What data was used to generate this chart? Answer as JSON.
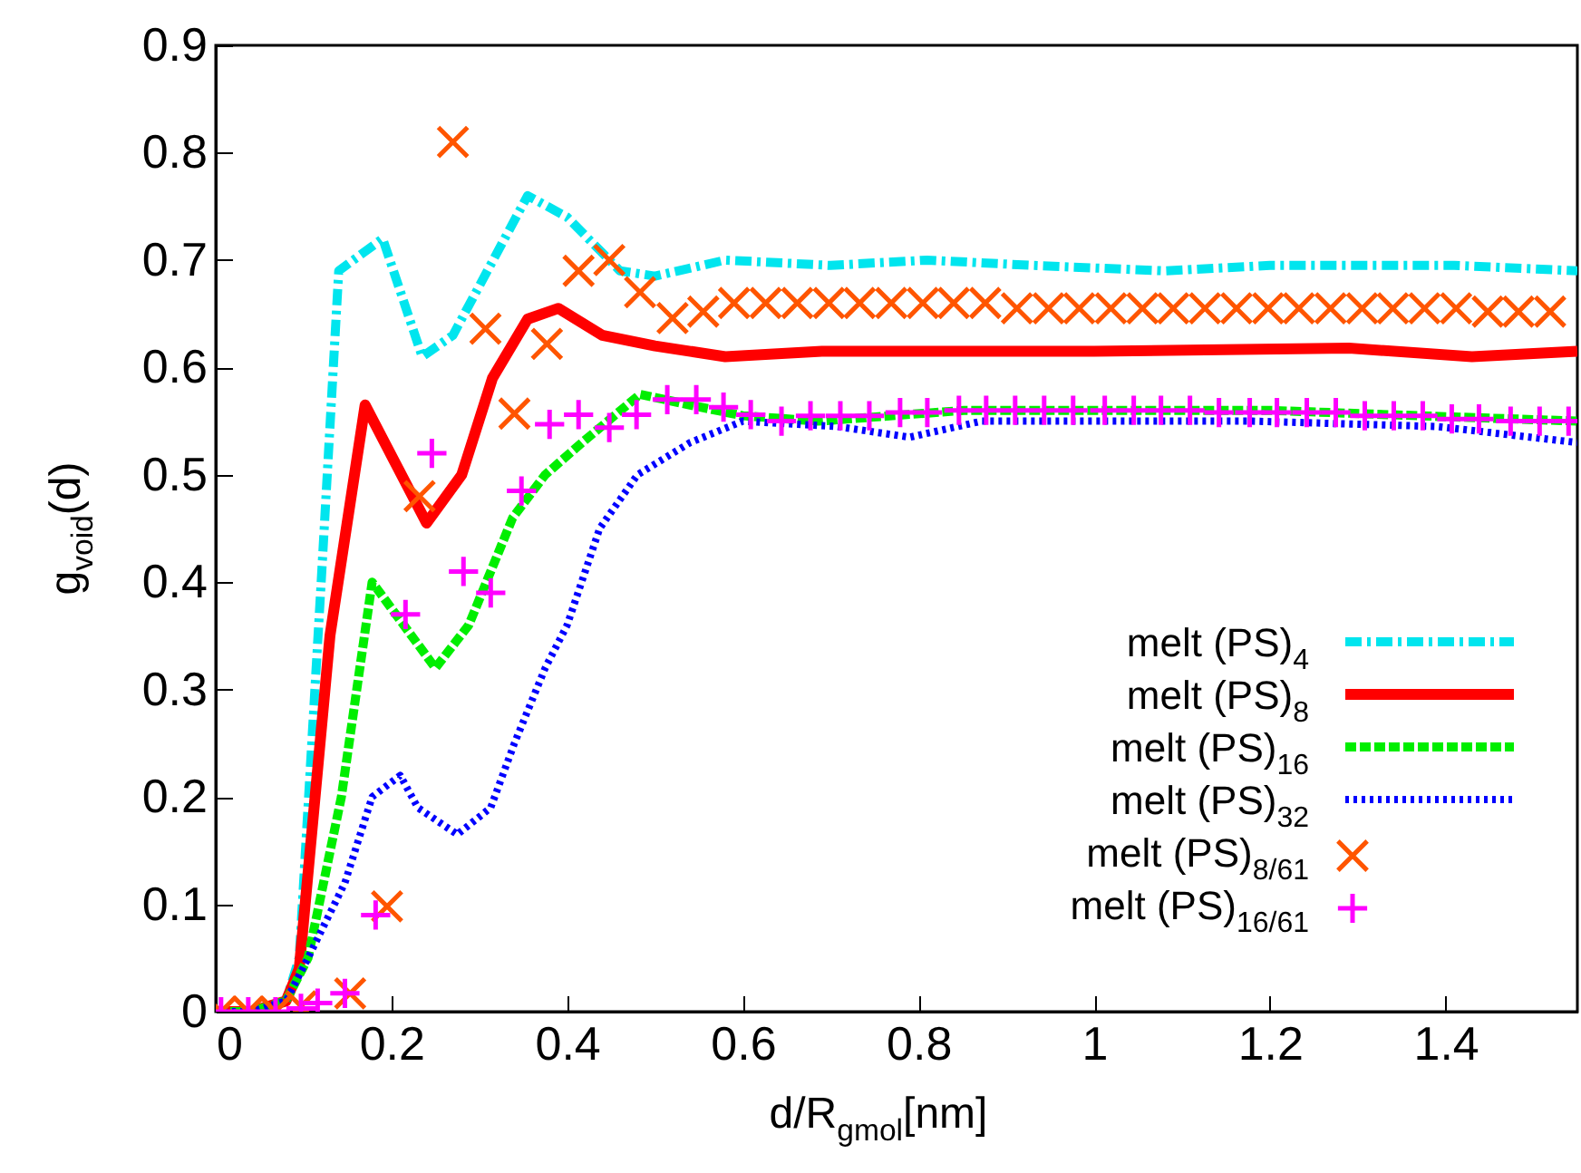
{
  "chart_data": {
    "type": "line",
    "xlabel": "d/R$_{g}$$_{mol}$[nm]",
    "ylabel": "g$_{void}$(d)",
    "xlim": [
      0,
      1.55
    ],
    "ylim": [
      0,
      0.9
    ],
    "xticks": [
      0,
      0.2,
      0.4,
      0.6,
      0.8,
      1,
      1.2,
      1.4
    ],
    "yticks": [
      0,
      0.1,
      0.2,
      0.3,
      0.4,
      0.5,
      0.6,
      0.7,
      0.8,
      0.9
    ],
    "grid": false,
    "legend": "bottom right",
    "series": [
      {
        "name": "melt (PS)$_{4}$",
        "color": "#00e5ee",
        "line_style": "dashdot",
        "x": [
          0,
          0.04,
          0.08,
          0.095,
          0.12,
          0.14,
          0.19,
          0.235,
          0.27,
          0.355,
          0.4,
          0.46,
          0.5,
          0.58,
          0.7,
          0.81,
          0.93,
          1.08,
          1.2,
          1.41,
          1.55
        ],
        "values": [
          0,
          0,
          0.01,
          0.05,
          0.4,
          0.69,
          0.72,
          0.61,
          0.63,
          0.76,
          0.74,
          0.69,
          0.685,
          0.7,
          0.695,
          0.7,
          0.695,
          0.69,
          0.695,
          0.695,
          0.69
        ]
      },
      {
        "name": "melt (PS)$_{8}$",
        "color": "#ff0000",
        "line_style": "solid",
        "x": [
          0,
          0.04,
          0.08,
          0.095,
          0.13,
          0.17,
          0.24,
          0.28,
          0.315,
          0.355,
          0.39,
          0.44,
          0.5,
          0.58,
          0.69,
          1.0,
          1.29,
          1.43,
          1.55
        ],
        "values": [
          0,
          0,
          0.01,
          0.04,
          0.35,
          0.565,
          0.455,
          0.5,
          0.59,
          0.645,
          0.655,
          0.63,
          0.62,
          0.61,
          0.615,
          0.615,
          0.618,
          0.61,
          0.615
        ]
      },
      {
        "name": "melt (PS)$_{16}$",
        "color": "#00ee00",
        "line_style": "dashed",
        "x": [
          0,
          0.04,
          0.08,
          0.105,
          0.143,
          0.178,
          0.205,
          0.25,
          0.288,
          0.338,
          0.375,
          0.417,
          0.483,
          0.54,
          0.6,
          0.686,
          0.852,
          1.2,
          1.37,
          1.55
        ],
        "values": [
          0,
          0,
          0.01,
          0.05,
          0.2,
          0.4,
          0.37,
          0.32,
          0.36,
          0.46,
          0.5,
          0.53,
          0.575,
          0.565,
          0.555,
          0.55,
          0.56,
          0.56,
          0.555,
          0.55
        ]
      },
      {
        "name": "melt (PS)$_{32}$",
        "color": "#0000ff",
        "line_style": "dotted",
        "x": [
          0,
          0.04,
          0.08,
          0.105,
          0.147,
          0.178,
          0.21,
          0.23,
          0.275,
          0.313,
          0.34,
          0.375,
          0.4,
          0.437,
          0.48,
          0.54,
          0.6,
          0.707,
          0.79,
          0.872,
          1.18,
          1.39,
          1.55
        ],
        "values": [
          0,
          0,
          0.01,
          0.05,
          0.12,
          0.2,
          0.22,
          0.19,
          0.165,
          0.19,
          0.25,
          0.32,
          0.36,
          0.45,
          0.5,
          0.53,
          0.55,
          0.545,
          0.535,
          0.55,
          0.55,
          0.545,
          0.53
        ]
      },
      {
        "name": "melt (PS)$_{8/61}$",
        "color": "#ff5500",
        "type": "scatter",
        "marker": "x",
        "x": [
          0.006,
          0.037,
          0.068,
          0.097,
          0.153,
          0.195,
          0.232,
          0.27,
          0.307,
          0.34,
          0.377,
          0.413,
          0.448,
          0.483,
          0.52,
          0.555,
          0.59,
          0.626,
          0.662,
          0.698,
          0.733,
          0.769,
          0.805,
          0.84,
          0.876,
          0.912,
          0.948,
          0.983,
          1.019,
          1.055,
          1.09,
          1.126,
          1.162,
          1.198,
          1.233,
          1.269,
          1.305,
          1.34,
          1.376,
          1.412,
          1.448,
          1.483,
          1.519
        ],
        "values": [
          0,
          0,
          0,
          0.005,
          0.017,
          0.098,
          0.48,
          0.81,
          0.636,
          0.557,
          0.622,
          0.69,
          0.7,
          0.67,
          0.646,
          0.652,
          0.66,
          0.66,
          0.66,
          0.66,
          0.66,
          0.66,
          0.66,
          0.66,
          0.66,
          0.655,
          0.655,
          0.655,
          0.655,
          0.655,
          0.655,
          0.655,
          0.655,
          0.655,
          0.655,
          0.655,
          0.655,
          0.655,
          0.655,
          0.655,
          0.652,
          0.652,
          0.652
        ]
      },
      {
        "name": "melt (PS)$_{16/61}$",
        "color": "#ff00ff",
        "type": "scatter",
        "marker": "cross",
        "x": [
          0.006,
          0.037,
          0.068,
          0.097,
          0.116,
          0.147,
          0.182,
          0.216,
          0.246,
          0.282,
          0.313,
          0.348,
          0.38,
          0.413,
          0.448,
          0.479,
          0.514,
          0.547,
          0.578,
          0.609,
          0.644,
          0.677,
          0.711,
          0.744,
          0.779,
          0.81,
          0.846,
          0.877,
          0.91,
          0.943,
          0.976,
          1.012,
          1.045,
          1.076,
          1.109,
          1.142,
          1.177,
          1.208,
          1.242,
          1.275,
          1.308,
          1.341,
          1.374,
          1.407,
          1.438,
          1.474,
          1.507,
          1.54
        ],
        "values": [
          0,
          0,
          0,
          0.003,
          0.008,
          0.017,
          0.09,
          0.37,
          0.52,
          0.41,
          0.39,
          0.485,
          0.547,
          0.556,
          0.544,
          0.556,
          0.57,
          0.57,
          0.563,
          0.556,
          0.55,
          0.555,
          0.555,
          0.555,
          0.558,
          0.558,
          0.56,
          0.56,
          0.56,
          0.56,
          0.56,
          0.56,
          0.56,
          0.56,
          0.56,
          0.558,
          0.558,
          0.558,
          0.558,
          0.558,
          0.555,
          0.555,
          0.555,
          0.552,
          0.552,
          0.55,
          0.55,
          0.55
        ]
      }
    ]
  }
}
